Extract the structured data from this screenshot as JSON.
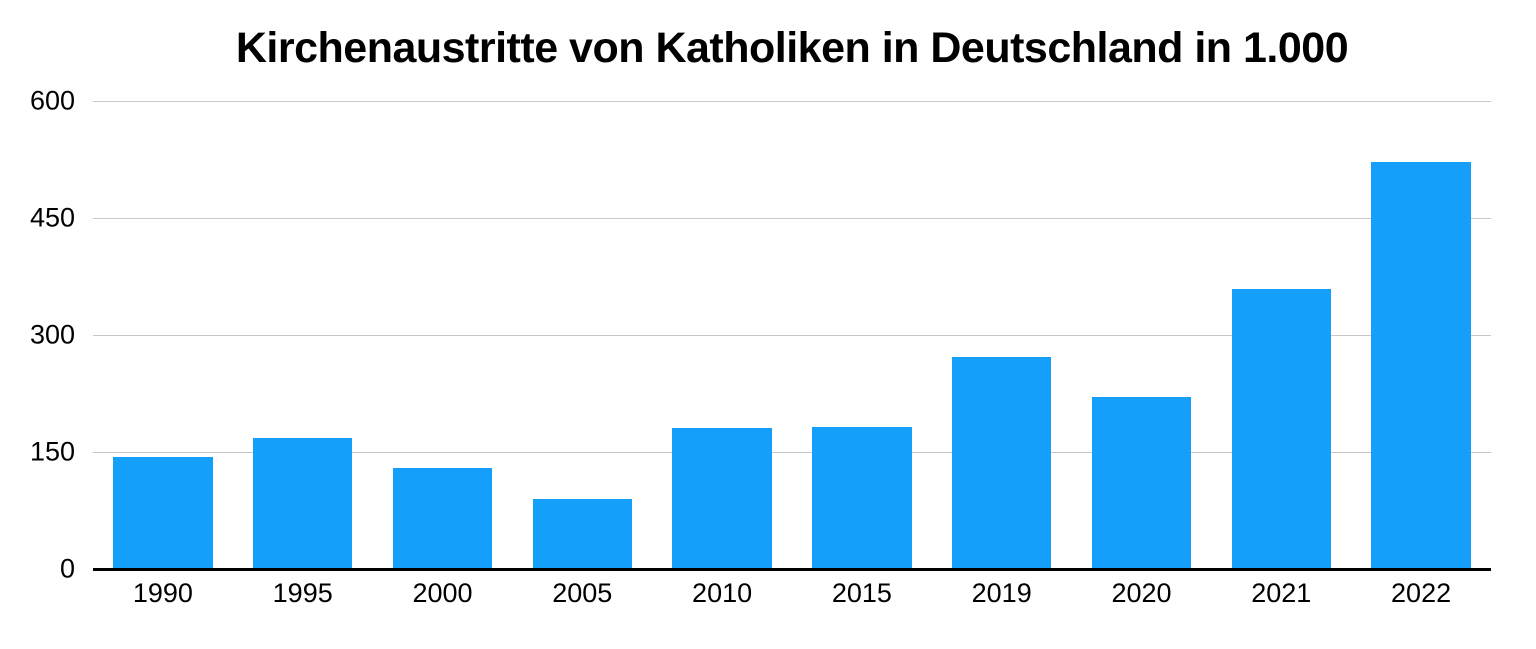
{
  "page": {
    "background_color": "#ffffff"
  },
  "chart_data": {
    "type": "bar",
    "title": "Kirchenaustritte von Katholiken in Deutschland in 1.000",
    "categories": [
      "1990",
      "1995",
      "2000",
      "2005",
      "2010",
      "2015",
      "2019",
      "2020",
      "2021",
      "2022"
    ],
    "values": [
      144,
      168,
      130,
      90,
      181,
      182,
      273,
      221,
      359,
      523
    ],
    "xlabel": "",
    "ylabel": "",
    "ylim": [
      0,
      600
    ],
    "y_ticks": [
      600,
      450,
      300,
      150,
      0
    ],
    "grid": "horizontal-gridlines-on",
    "legend": "none",
    "bar_color": "#14a0fa",
    "gridline_color": "#c8c8c8",
    "axis_color": "#000000",
    "text_color": "#000000"
  }
}
